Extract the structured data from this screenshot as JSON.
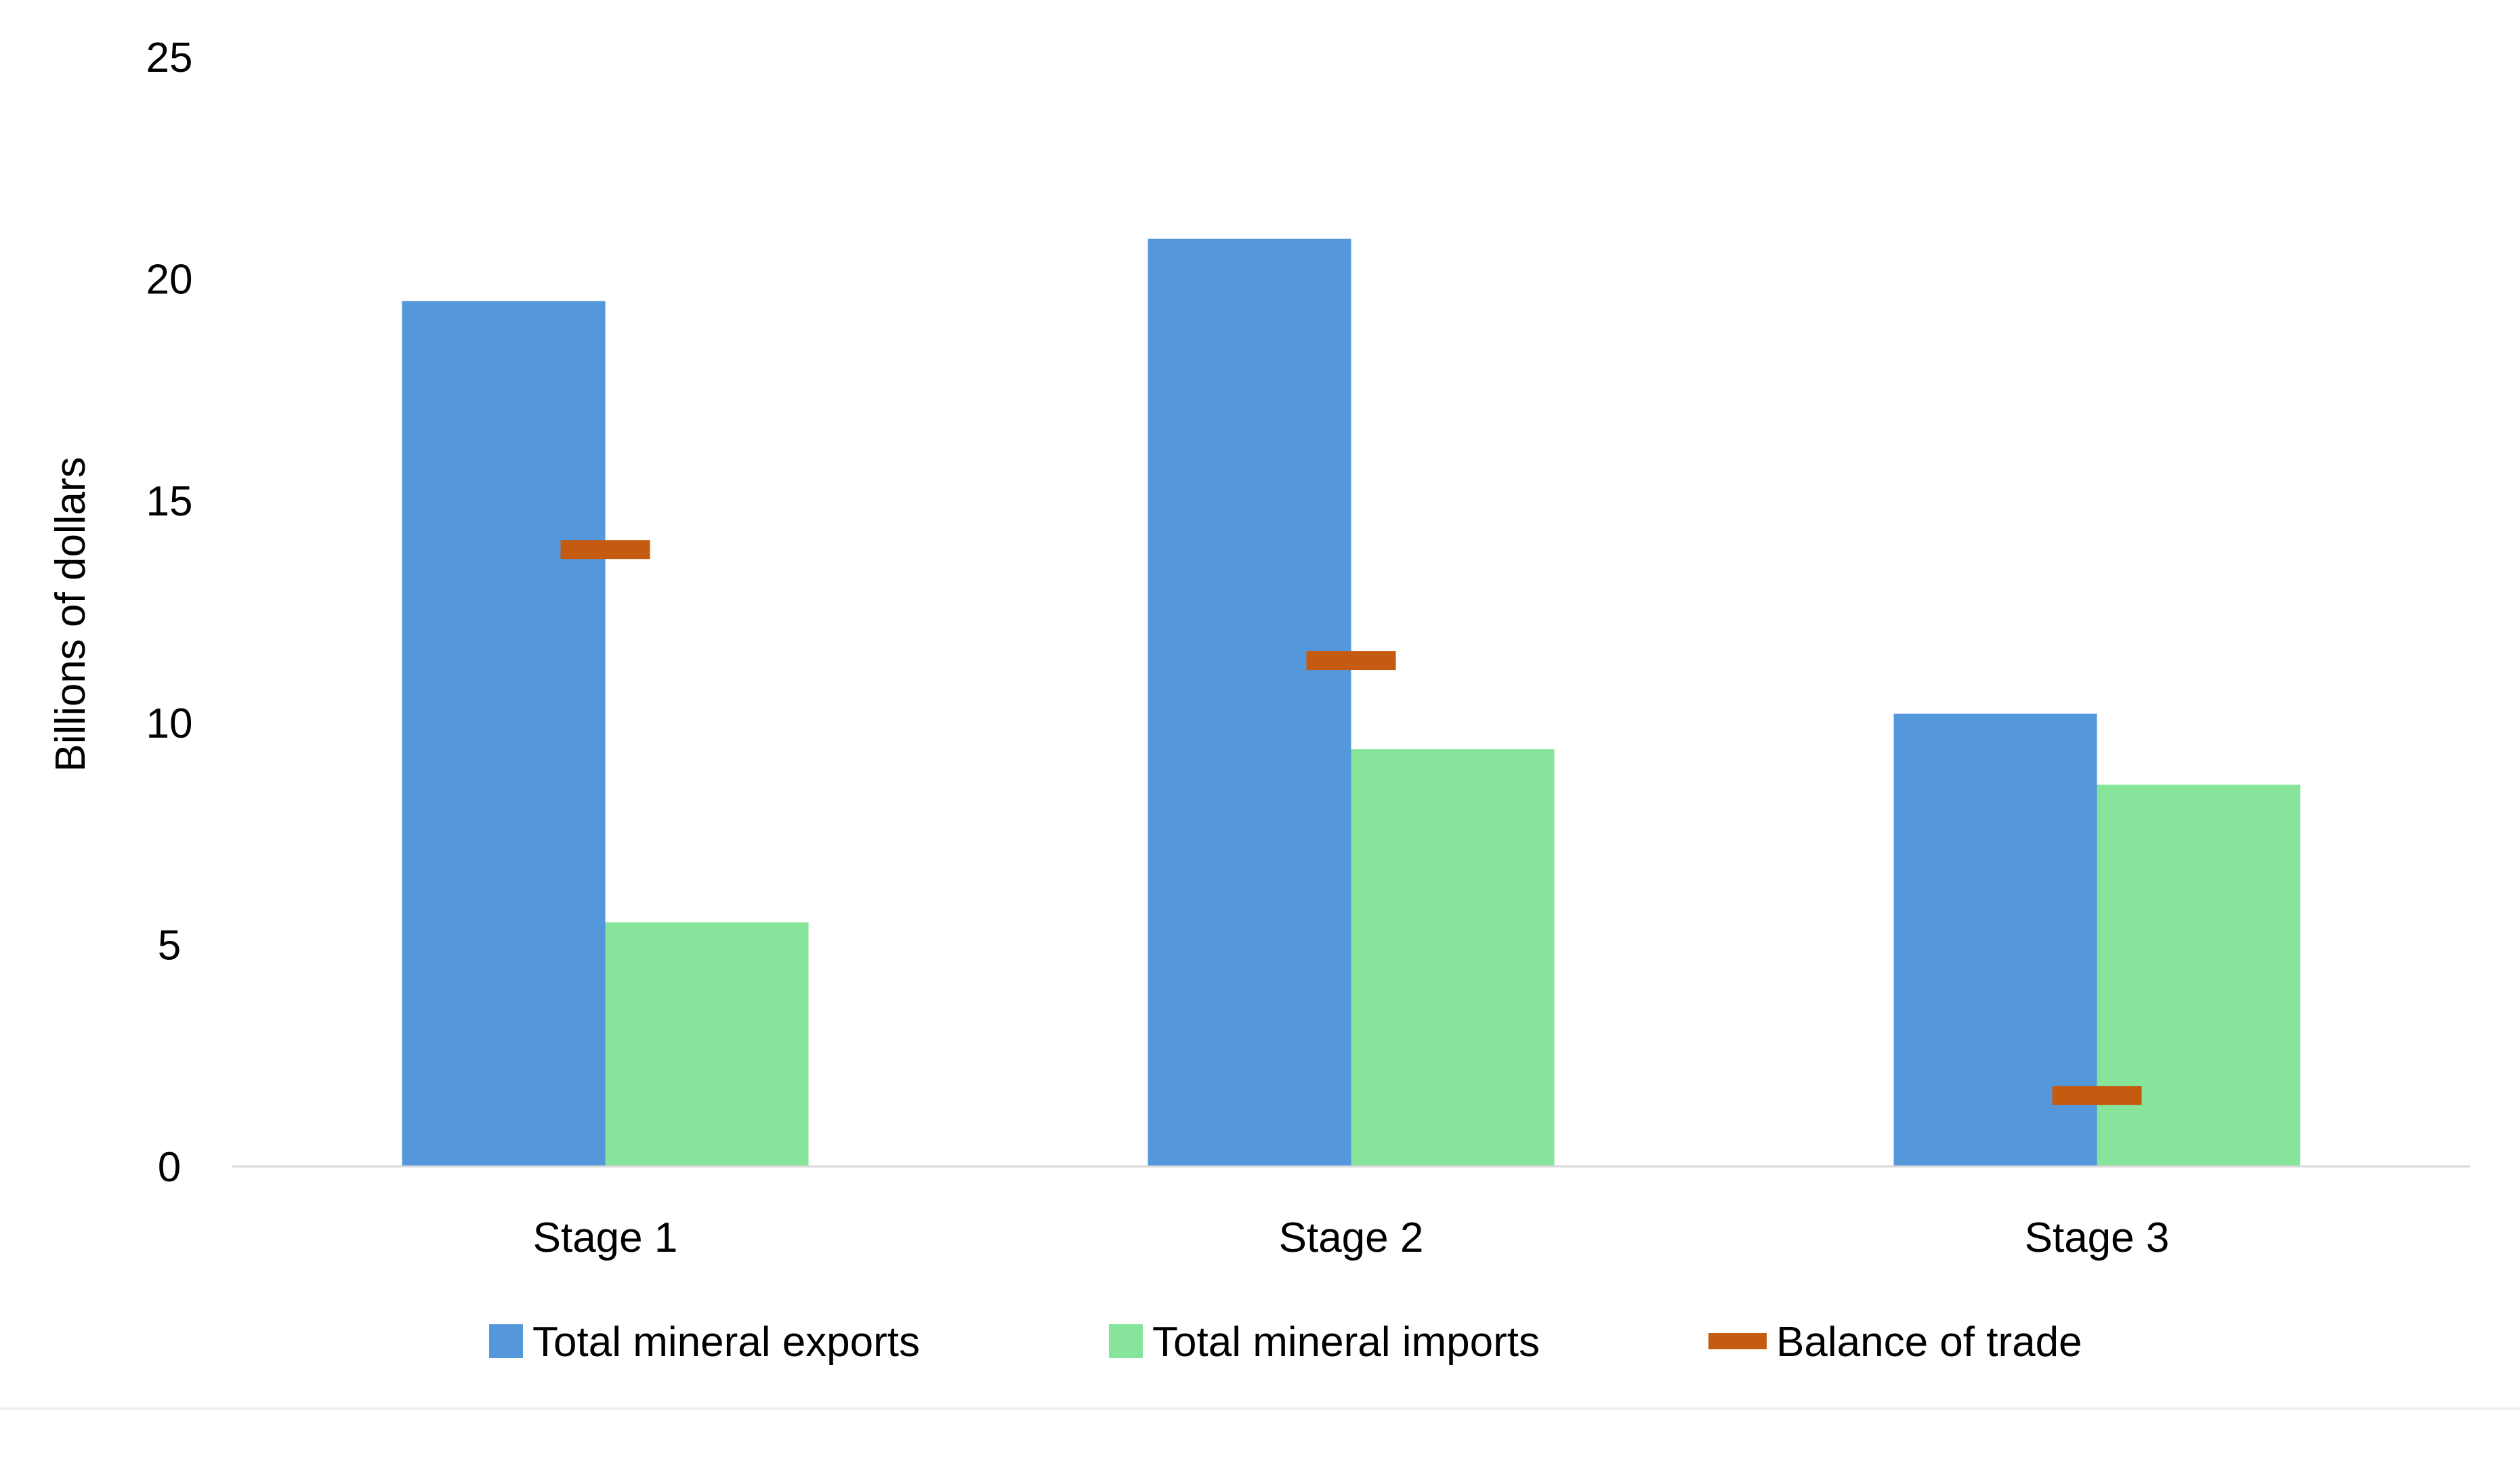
{
  "chart_data": {
    "type": "bar",
    "title": "",
    "xlabel": "",
    "ylabel": "Billions of dollars",
    "categories": [
      "Stage 1",
      "Stage 2",
      "Stage 3"
    ],
    "ylim": [
      0,
      25
    ],
    "yticks": [
      0,
      5,
      10,
      15,
      20,
      25
    ],
    "grid": false,
    "legend_position": "bottom",
    "series": [
      {
        "name": "Total mineral exports",
        "kind": "bar",
        "color": "#5498DB",
        "values": [
          19.5,
          20.9,
          10.2
        ]
      },
      {
        "name": "Total mineral imports",
        "kind": "bar",
        "color": "#86E49B",
        "values": [
          5.5,
          9.4,
          8.6
        ]
      },
      {
        "name": "Balance of trade",
        "kind": "marker",
        "color": "#C55A11",
        "values": [
          13.9,
          11.4,
          1.6
        ]
      }
    ]
  }
}
